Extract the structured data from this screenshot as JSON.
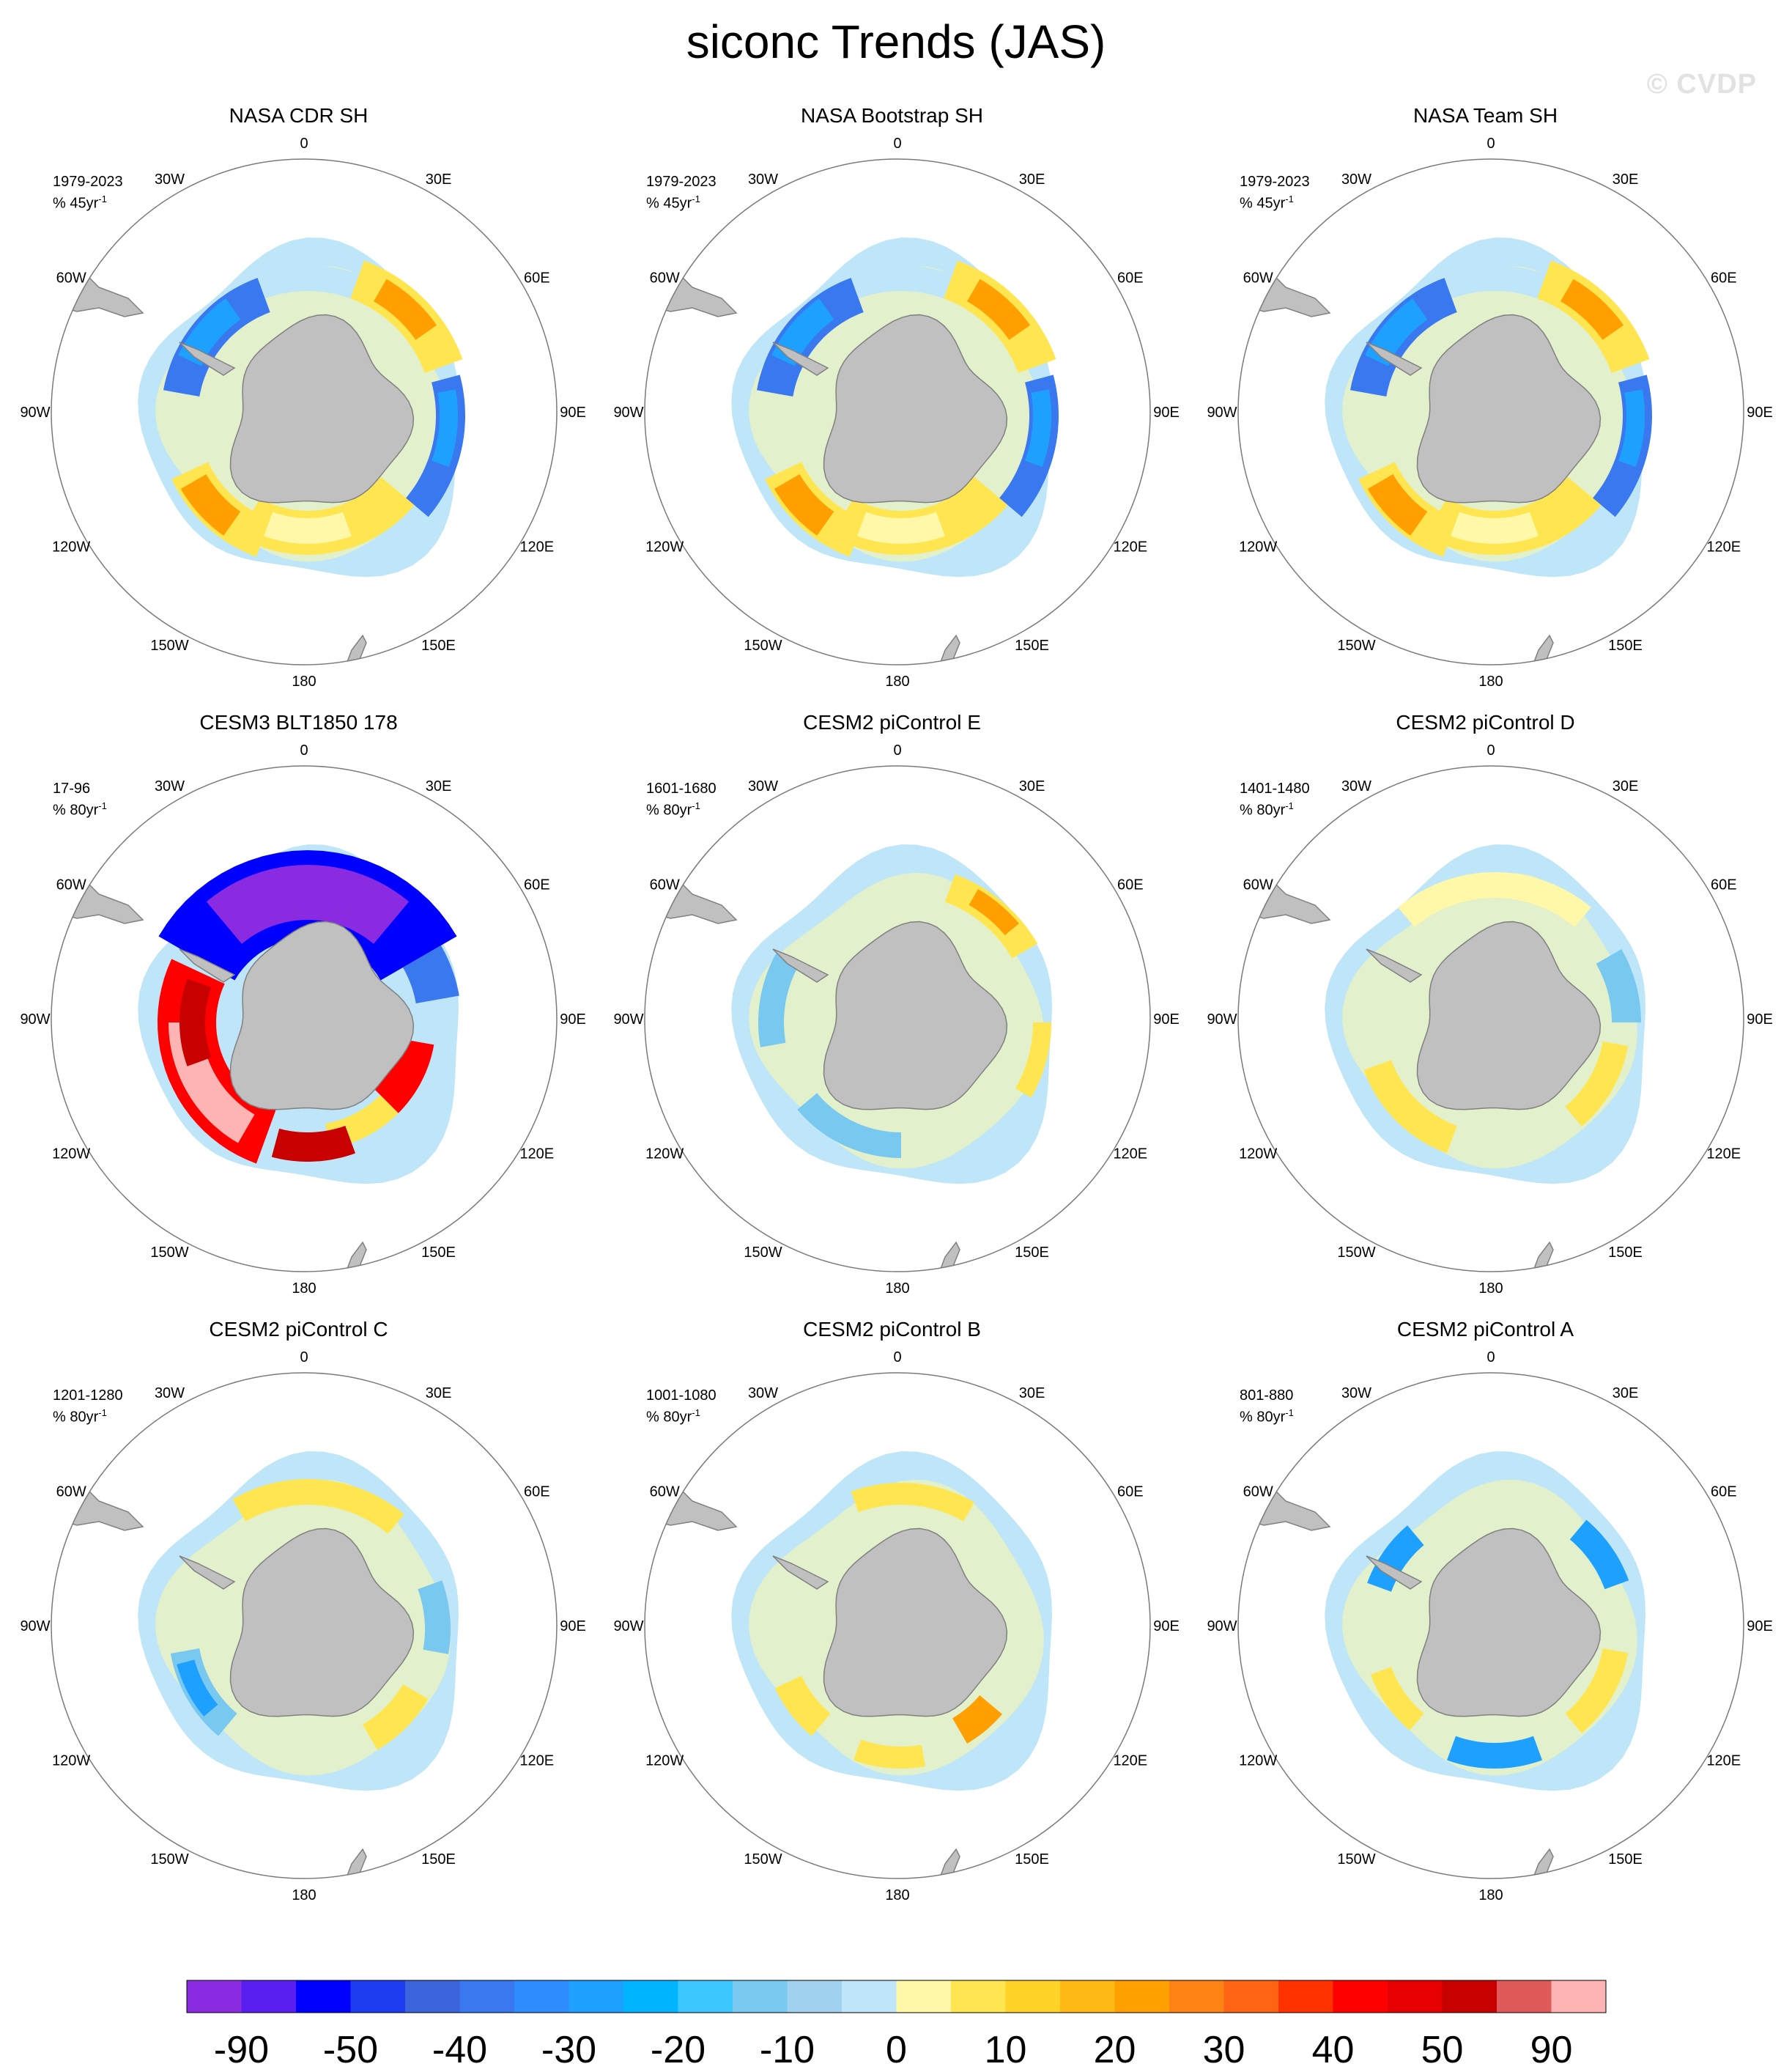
{
  "title": "siconc Trends (JAS)",
  "watermark": "© CVDP",
  "panels": [
    {
      "title": "NASA CDR SH",
      "period": "1979-2023",
      "units": "% 45yr",
      "units_exp": "-1"
    },
    {
      "title": "NASA Bootstrap SH",
      "period": "1979-2023",
      "units": "% 45yr",
      "units_exp": "-1"
    },
    {
      "title": "NASA Team SH",
      "period": "1979-2023",
      "units": "% 45yr",
      "units_exp": "-1"
    },
    {
      "title": "CESM3 BLT1850 178",
      "period": "17-96",
      "units": "% 80yr",
      "units_exp": "-1"
    },
    {
      "title": "CESM2 piControl E",
      "period": "1601-1680",
      "units": "% 80yr",
      "units_exp": "-1"
    },
    {
      "title": "CESM2 piControl D",
      "period": "1401-1480",
      "units": "% 80yr",
      "units_exp": "-1"
    },
    {
      "title": "CESM2 piControl C",
      "period": "1201-1280",
      "units": "% 80yr",
      "units_exp": "-1"
    },
    {
      "title": "CESM2 piControl B",
      "period": "1001-1080",
      "units": "% 80yr",
      "units_exp": "-1"
    },
    {
      "title": "CESM2 piControl A",
      "period": "801-880",
      "units": "% 80yr",
      "units_exp": "-1"
    }
  ],
  "lon_labels": [
    "0",
    "30E",
    "60E",
    "90E",
    "120E",
    "150E",
    "180",
    "150W",
    "120W",
    "90W",
    "60W",
    "30W"
  ],
  "colorbar": {
    "colors": [
      "#8a2be2",
      "#5a1ef0",
      "#0000ff",
      "#1e3cf0",
      "#3c64dc",
      "#3a78f0",
      "#2d8cff",
      "#1ea0ff",
      "#00b4ff",
      "#3cc8ff",
      "#78c8f0",
      "#a0d2f0",
      "#bee6f8",
      "#fff8a8",
      "#ffe650",
      "#ffd228",
      "#ffb914",
      "#ffa000",
      "#ff8214",
      "#ff6414",
      "#ff3200",
      "#ff0000",
      "#e60000",
      "#c80000",
      "#e05a5a",
      "#ffb4b4"
    ],
    "labels": [
      "-90",
      "-50",
      "-40",
      "-30",
      "-20",
      "-10",
      "0",
      "10",
      "20",
      "30",
      "40",
      "50",
      "90"
    ]
  }
}
